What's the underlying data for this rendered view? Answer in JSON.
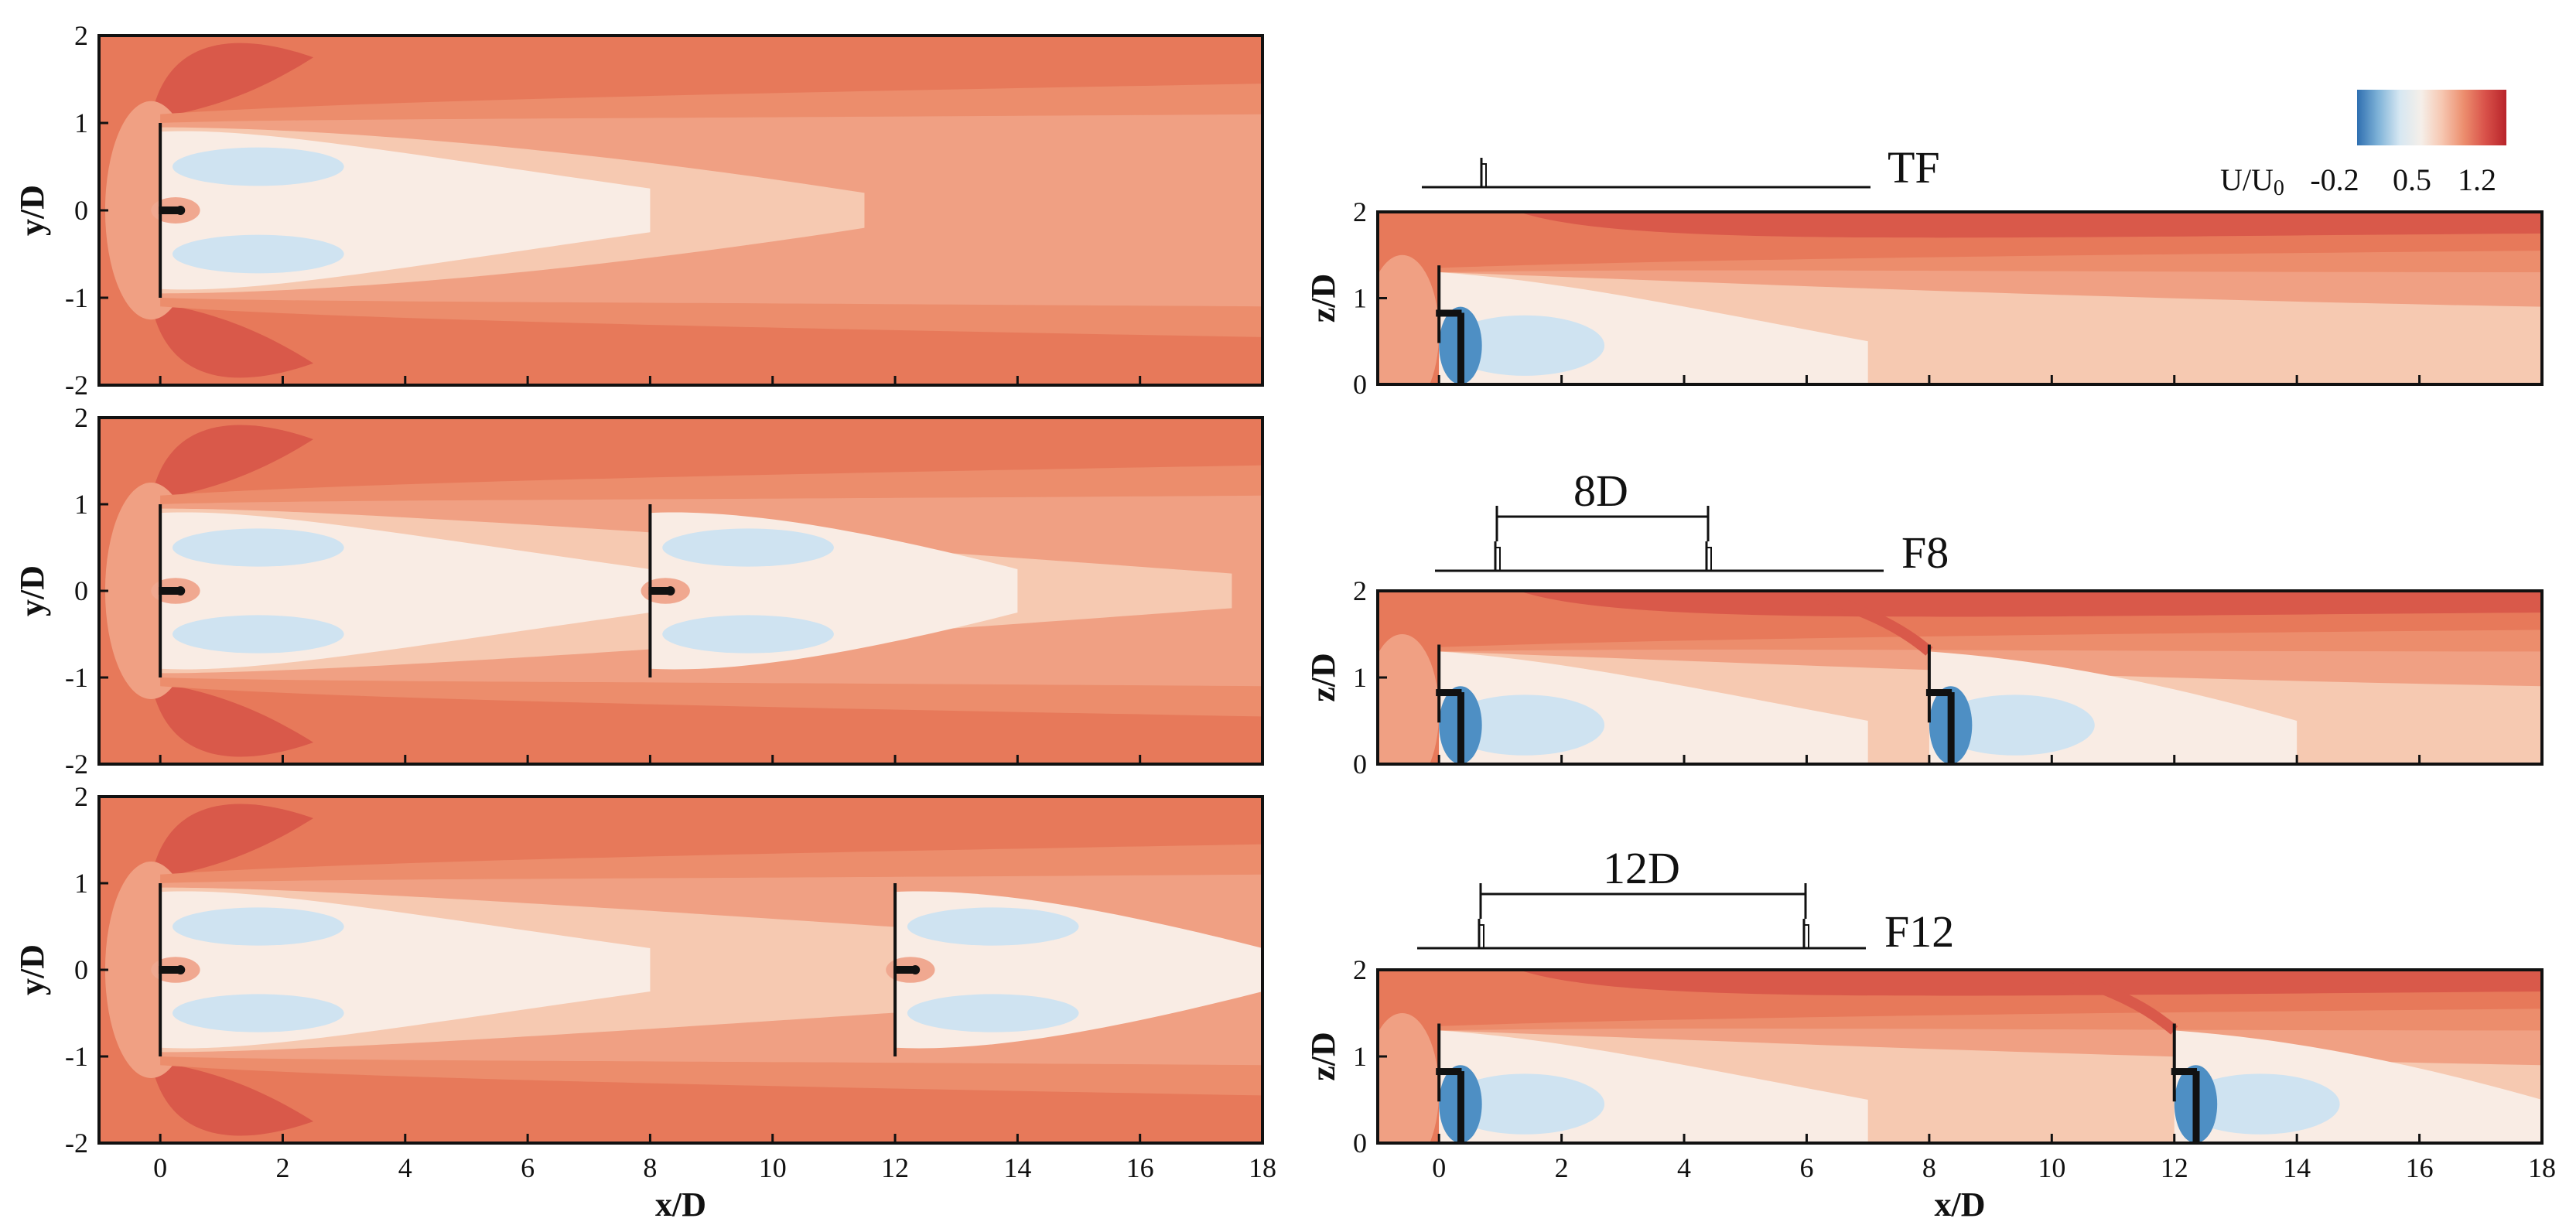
{
  "chart_data": {
    "type": "heatmap",
    "title": "",
    "field": "U/U0",
    "colorbar": {
      "label": "U/U",
      "label_sub": "0",
      "ticks": [
        "-0.2",
        "0.5",
        "1.2"
      ],
      "range": [
        -0.2,
        1.2
      ],
      "placement": "top-right",
      "colors": [
        "#2f6fb0",
        "#7fb3d8",
        "#d6e7f2",
        "#f5efe9",
        "#f6c6b0",
        "#ec8e6e",
        "#d9524a",
        "#b8242a"
      ]
    },
    "colors": {
      "freestream": "#e7795a",
      "speedup": "#d9594a",
      "wake_outer": "#f0a083",
      "wake_mid": "#f6c9b1",
      "wake_core": "#f9ece4",
      "reversed_light": "#cfe3f1",
      "reversed_strong": "#4e8fc4",
      "turbine": "#111111"
    },
    "panels": [
      {
        "id": "top-view-TF",
        "view": "top",
        "case": "TF",
        "xlabel": "",
        "ylabel": "y/D",
        "xlim": [
          -1,
          18
        ],
        "ylim": [
          -2,
          2
        ],
        "x_ticks": [],
        "y_ticks": [
          "-2",
          "-1",
          "0",
          "1",
          "2"
        ],
        "turbines_x": [
          0
        ],
        "wake_end_x": 11.5
      },
      {
        "id": "top-view-F8",
        "view": "top",
        "case": "F8",
        "xlabel": "",
        "ylabel": "y/D",
        "xlim": [
          -1,
          18
        ],
        "ylim": [
          -2,
          2
        ],
        "x_ticks": [],
        "y_ticks": [
          "-2",
          "-1",
          "0",
          "1",
          "2"
        ],
        "turbines_x": [
          0,
          8
        ],
        "wake_end_x": 17.5
      },
      {
        "id": "top-view-F12",
        "view": "top",
        "case": "F12",
        "xlabel": "x/D",
        "ylabel": "y/D",
        "xlim": [
          -1,
          18
        ],
        "ylim": [
          -2,
          2
        ],
        "x_ticks": [
          "0",
          "2",
          "4",
          "6",
          "8",
          "10",
          "12",
          "14",
          "16",
          "18"
        ],
        "y_ticks": [
          "-2",
          "-1",
          "0",
          "1",
          "2"
        ],
        "turbines_x": [
          0,
          12
        ],
        "wake_end_x": 18
      },
      {
        "id": "side-view-TF",
        "view": "side",
        "case": "TF",
        "xlabel": "",
        "ylabel": "z/D",
        "xlim": [
          -1,
          18
        ],
        "ylim": [
          0,
          2
        ],
        "x_ticks": [],
        "y_ticks": [
          "0",
          "1",
          "2"
        ],
        "turbines_x": [
          0
        ],
        "hub_height": 0.83
      },
      {
        "id": "side-view-F8",
        "view": "side",
        "case": "F8",
        "xlabel": "",
        "ylabel": "z/D",
        "xlim": [
          -1,
          18
        ],
        "ylim": [
          0,
          2
        ],
        "x_ticks": [],
        "y_ticks": [
          "0",
          "1",
          "2"
        ],
        "turbines_x": [
          0,
          8
        ],
        "hub_height": 0.83
      },
      {
        "id": "side-view-F12",
        "view": "side",
        "case": "F12",
        "xlabel": "x/D",
        "ylabel": "z/D",
        "xlim": [
          -1,
          18
        ],
        "ylim": [
          0,
          2
        ],
        "x_ticks": [
          "0",
          "2",
          "4",
          "6",
          "8",
          "10",
          "12",
          "14",
          "16",
          "18"
        ],
        "y_ticks": [
          "0",
          "1",
          "2"
        ],
        "turbines_x": [
          0,
          12
        ],
        "hub_height": 0.83
      }
    ],
    "schematics": [
      {
        "id": "schematic-TF",
        "label": "TF",
        "spacing_label": "",
        "turbines": 1
      },
      {
        "id": "schematic-F8",
        "label": "F8",
        "spacing_label": "8D",
        "turbines": 2
      },
      {
        "id": "schematic-F12",
        "label": "F12",
        "spacing_label": "12D",
        "turbines": 2
      }
    ]
  }
}
